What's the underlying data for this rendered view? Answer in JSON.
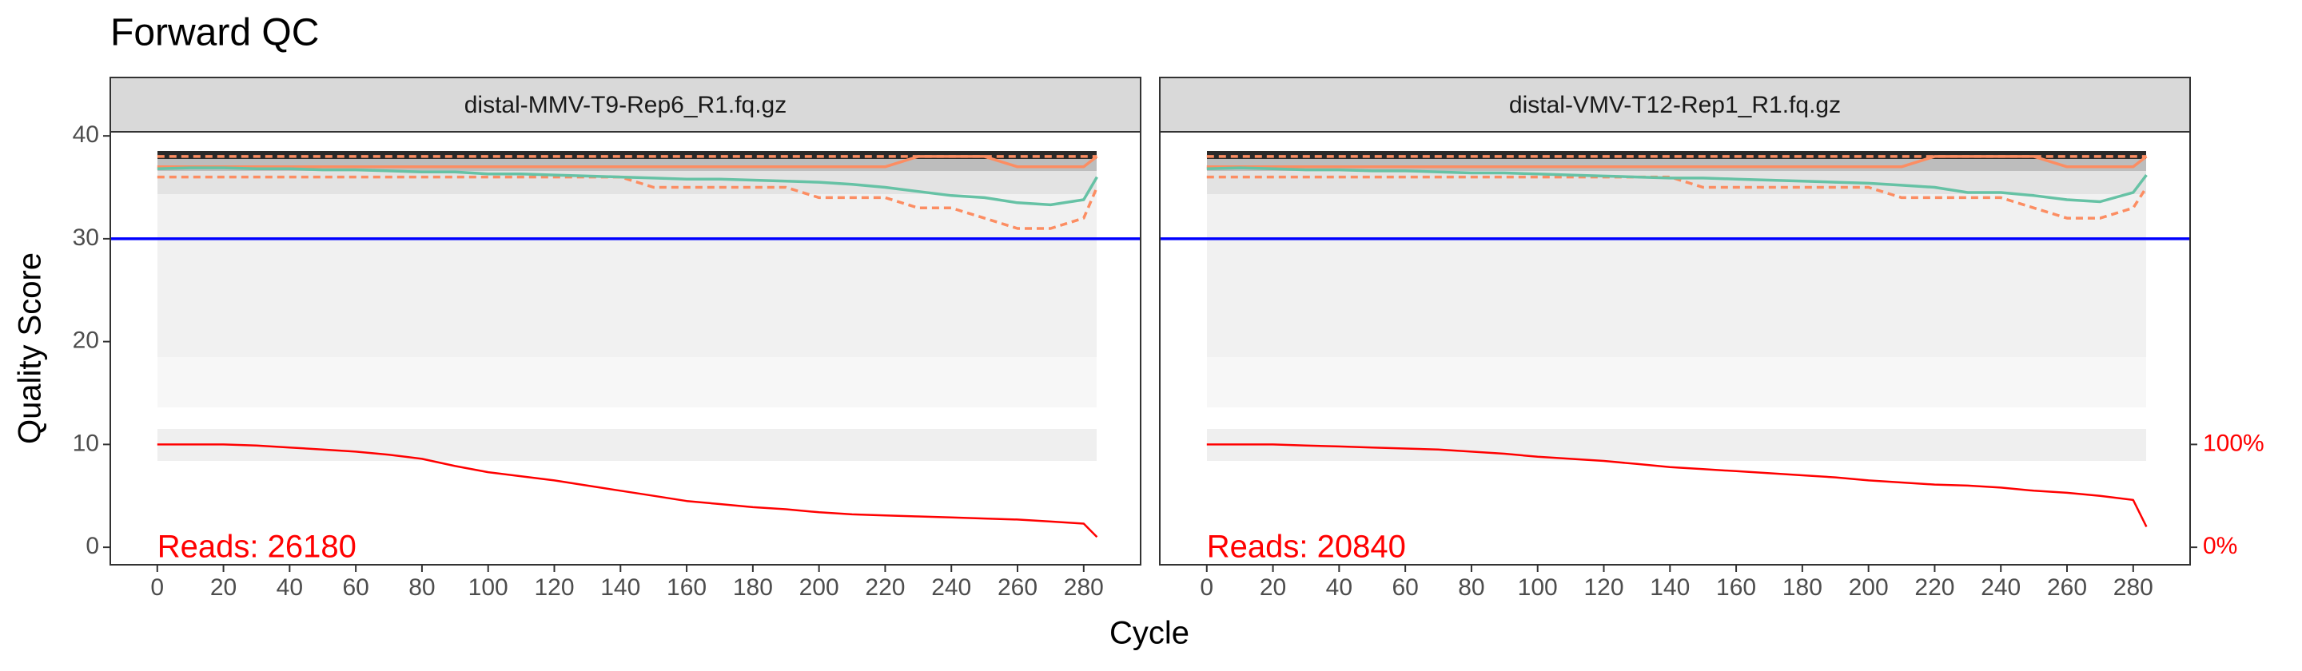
{
  "chart_data": {
    "type": "line",
    "title": "Forward QC",
    "xlabel": "Cycle",
    "ylabel": "Quality Score",
    "x": [
      0,
      10,
      20,
      30,
      40,
      50,
      60,
      70,
      80,
      90,
      100,
      110,
      120,
      130,
      140,
      150,
      160,
      170,
      180,
      190,
      200,
      210,
      220,
      230,
      240,
      250,
      260,
      270,
      280,
      284
    ],
    "xlim": [
      -14.2,
      297.2
    ],
    "xticks": [
      0,
      20,
      40,
      60,
      80,
      100,
      120,
      140,
      160,
      180,
      200,
      220,
      240,
      260,
      280
    ],
    "ylim": [
      -1.7,
      40.4
    ],
    "yticks": [
      0,
      10,
      20,
      30,
      40
    ],
    "y2lim": [
      -17,
      404
    ],
    "y2ticks": [
      {
        "value": 0,
        "label": "0%"
      },
      {
        "value": 100,
        "label": "100%"
      }
    ],
    "y2color": "#ff0000",
    "hline": {
      "value": 30,
      "color": "#0000ff"
    },
    "grid": false,
    "panels": [
      {
        "title": "distal-MMV-T9-Rep6_R1.fq.gz",
        "annotation": "Reads:  26180",
        "series": [
          {
            "color": "#fc8d62",
            "linestyle": "dashed",
            "values": [
              38,
              38,
              38,
              38,
              38,
              38,
              38,
              38,
              38,
              38,
              38,
              38,
              38,
              38,
              38,
              38,
              38,
              38,
              38,
              38,
              38,
              38,
              38,
              38,
              38,
              38,
              38,
              38,
              38,
              38
            ]
          },
          {
            "color": "#fc8d62",
            "linestyle": "dashed",
            "values": [
              36,
              36,
              36,
              36,
              36,
              36,
              36,
              36,
              36,
              36,
              36,
              36,
              36,
              36,
              36,
              35,
              35,
              35,
              35,
              35,
              34,
              34,
              34,
              33,
              33,
              32,
              31,
              31,
              32,
              35
            ]
          },
          {
            "color": "#fc8d62",
            "linestyle": "solid",
            "values": [
              37,
              37,
              37,
              37,
              37,
              37,
              37,
              37,
              37,
              37,
              37,
              37,
              37,
              37,
              37,
              37,
              37,
              37,
              37,
              37,
              37,
              37,
              37,
              38,
              38,
              38,
              37,
              37,
              37,
              38
            ]
          },
          {
            "color": "#66c2a5",
            "linestyle": "solid",
            "values": [
              36.8,
              36.9,
              36.9,
              36.8,
              36.8,
              36.7,
              36.7,
              36.6,
              36.5,
              36.5,
              36.3,
              36.3,
              36.2,
              36.1,
              36.0,
              35.9,
              35.8,
              35.8,
              35.7,
              35.6,
              35.5,
              35.3,
              35.0,
              34.6,
              34.2,
              34.0,
              33.5,
              33.3,
              33.8,
              36.0
            ]
          },
          {
            "color": "#ff0000",
            "linestyle": "solid",
            "axis": "y2",
            "values": [
              100,
              100,
              100,
              99,
              97,
              95,
              93,
              90,
              86,
              79,
              73,
              69,
              65,
              60,
              55,
              50,
              45,
              42,
              39,
              37,
              34,
              32,
              31,
              30,
              29,
              28,
              27,
              25,
              23,
              10
            ]
          }
        ]
      },
      {
        "title": "distal-VMV-T12-Rep1_R1.fq.gz",
        "annotation": "Reads:  20840",
        "series": [
          {
            "color": "#fc8d62",
            "linestyle": "dashed",
            "values": [
              38,
              38,
              38,
              38,
              38,
              38,
              38,
              38,
              38,
              38,
              38,
              38,
              38,
              38,
              38,
              38,
              38,
              38,
              38,
              38,
              38,
              38,
              38,
              38,
              38,
              38,
              38,
              38,
              38,
              38
            ]
          },
          {
            "color": "#fc8d62",
            "linestyle": "dashed",
            "values": [
              36,
              36,
              36,
              36,
              36,
              36,
              36,
              36,
              36,
              36,
              36,
              36,
              36,
              36,
              36,
              35,
              35,
              35,
              35,
              35,
              35,
              34,
              34,
              34,
              34,
              33,
              32,
              32,
              33,
              35
            ]
          },
          {
            "color": "#fc8d62",
            "linestyle": "solid",
            "values": [
              37,
              37,
              37,
              37,
              37,
              37,
              37,
              37,
              37,
              37,
              37,
              37,
              37,
              37,
              37,
              37,
              37,
              37,
              37,
              37,
              37,
              37,
              38,
              38,
              38,
              38,
              37,
              37,
              37,
              38
            ]
          },
          {
            "color": "#66c2a5",
            "linestyle": "solid",
            "values": [
              36.8,
              36.9,
              36.8,
              36.7,
              36.7,
              36.6,
              36.6,
              36.5,
              36.4,
              36.4,
              36.3,
              36.2,
              36.1,
              36.0,
              35.9,
              35.9,
              35.8,
              35.7,
              35.6,
              35.5,
              35.4,
              35.2,
              35.0,
              34.5,
              34.5,
              34.2,
              33.8,
              33.6,
              34.5,
              36.2
            ]
          },
          {
            "color": "#ff0000",
            "linestyle": "solid",
            "axis": "y2",
            "values": [
              100,
              100,
              100,
              99,
              98,
              97,
              96,
              95,
              93,
              91,
              88,
              86,
              84,
              81,
              78,
              76,
              74,
              72,
              70,
              68,
              65,
              63,
              61,
              60,
              58,
              55,
              53,
              50,
              46,
              20
            ]
          }
        ]
      }
    ]
  }
}
